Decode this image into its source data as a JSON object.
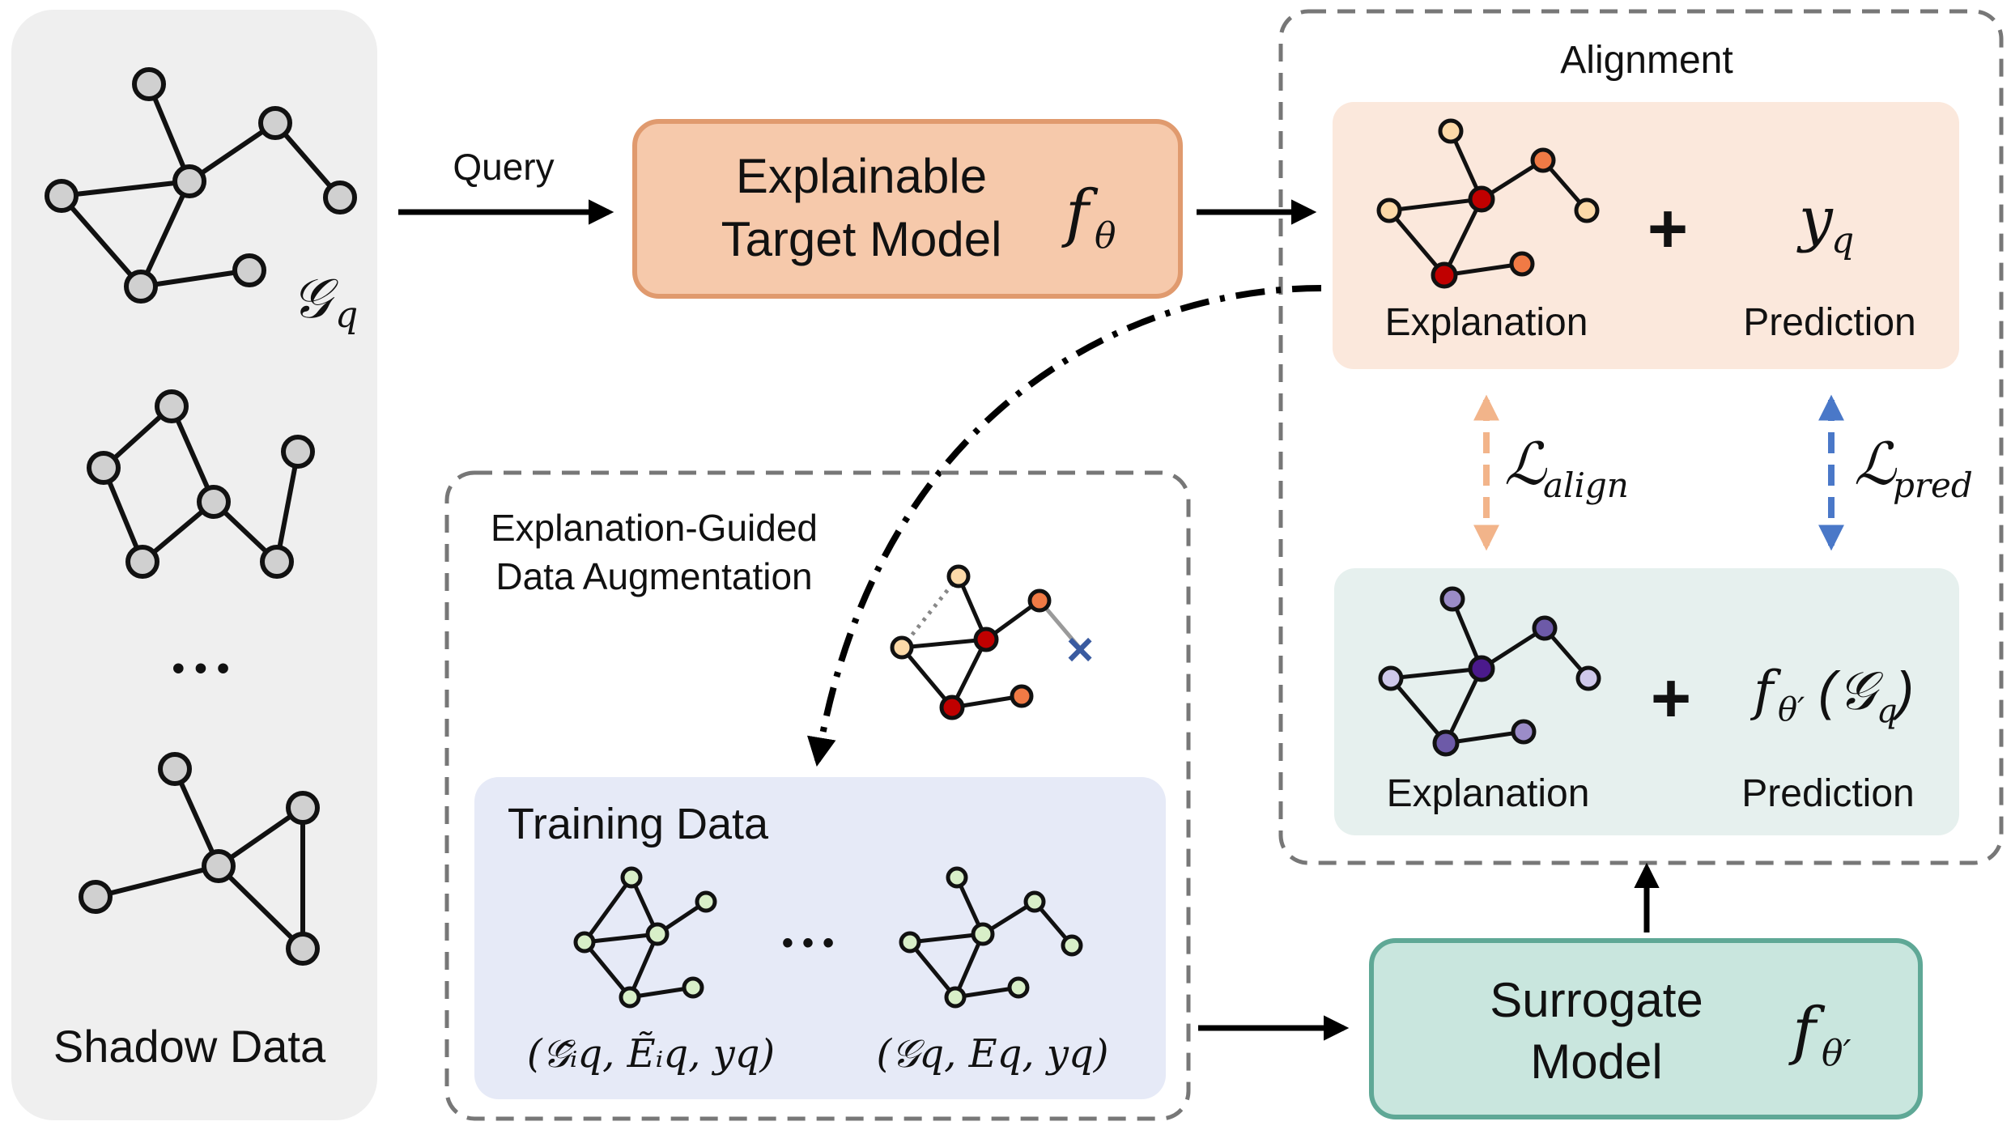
{
  "shadow_panel": {
    "label": "Shadow Data",
    "graph_symbol": "𝒢",
    "graph_subscript": "q",
    "ellipsis": "• • •"
  },
  "query": {
    "label": "Query"
  },
  "target_model": {
    "line1": "Explainable",
    "line2": "Target Model",
    "symbol": "f",
    "symbol_sub": "θ"
  },
  "alignment": {
    "title": "Alignment",
    "top": {
      "explanation_label": "Explanation",
      "prediction_label": "Prediction",
      "plus": "+",
      "pred_symbol": "y",
      "pred_sub": "q"
    },
    "bottom": {
      "explanation_label": "Explanation",
      "prediction_label": "Prediction",
      "plus": "+",
      "pred_f": "f",
      "pred_f_sub": "θ′",
      "pred_arg_open": "(",
      "pred_arg": "𝒢",
      "pred_arg_sub": "q",
      "pred_arg_close": ")"
    },
    "loss_align": {
      "symbol": "ℒ",
      "sub": "align"
    },
    "loss_pred": {
      "symbol": "ℒ",
      "sub": "pred"
    }
  },
  "augmentation": {
    "title_line1": "Explanation-Guided",
    "title_line2": "Data Augmentation",
    "delete_mark": "×"
  },
  "training_data": {
    "title": "Training Data",
    "ellipsis": "• • •",
    "tuple_left": "(𝒢̃ᵢq, Ẽᵢq, yq)",
    "tuple_right": "(𝒢q, Eq, yq)"
  },
  "surrogate": {
    "line1": "Surrogate",
    "line2": "Model",
    "symbol": "f",
    "symbol_sub": "θ′"
  },
  "colors": {
    "shadow_bg": "#efefef",
    "node_gray": "#d0d0d0",
    "target_fill": "#f6c9ab",
    "target_stroke": "#e09a6e",
    "align_top_bg": "#fbe8dc",
    "align_bottom_bg": "#e6f0ee",
    "train_bg": "#e6eaf7",
    "surrogate_fill": "#c9e6de",
    "surrogate_stroke": "#5fa896",
    "arrow_orange": "#f2b48a",
    "arrow_blue": "#4a78c8",
    "node_dark_red": "#c00000",
    "node_orange": "#f07a45",
    "node_light_orange": "#fcd9a8",
    "node_purple_dark": "#4b1a8c",
    "node_purple": "#9b8cc8",
    "node_lavender": "#cfc8ea",
    "node_green": "#d8efc8"
  }
}
